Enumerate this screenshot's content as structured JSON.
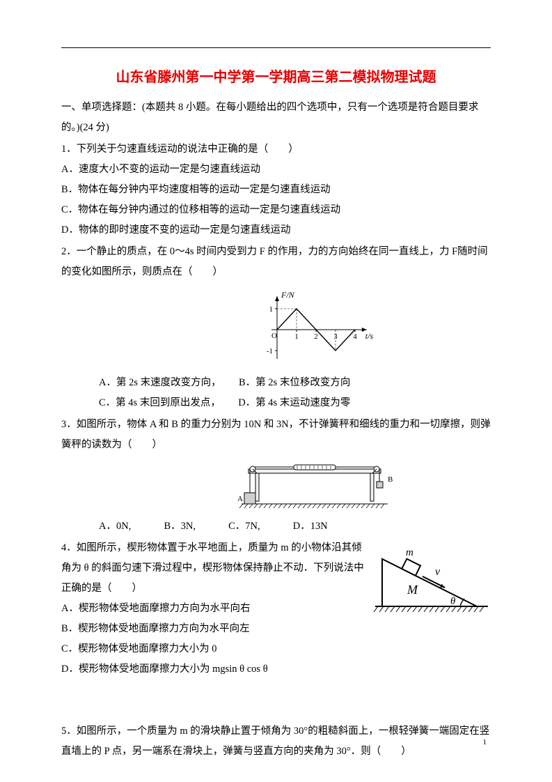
{
  "title": "山东省滕州第一中学第一学期高三第二模拟物理试题",
  "section1": {
    "heading": "一、单项选择题：(本题共 8 小题。在每小题给出的四个选项中，只有一个选项是符合题目要求的。)(24 分)"
  },
  "q1": {
    "stem": "1．下列关于匀速直线运动的说法中正确的是（　　）",
    "A": "A．速度大小不变的运动一定是匀速直线运动",
    "B": "B．物体在每分钟内平均速度相等的运动一定是匀速直线运动",
    "C": "C．物体在每分钟内通过的位移相等的运动一定是匀速直线运动",
    "D": "D．物体的即时速度不变的运动一定是匀速直线运动"
  },
  "q2": {
    "stem": "2．一个静止的质点，在 0～4s 时间内受到力 F 的作用，力的方向始终在同一直线上，力 F随时间的变化如图所示，则质点在（　　）",
    "graph": {
      "ylabel": "F/N",
      "xlabel": "t/s",
      "xticks": [
        1,
        2,
        3,
        4
      ],
      "yticks": [
        -1,
        1
      ],
      "points": [
        [
          0,
          0
        ],
        [
          1,
          1
        ],
        [
          2,
          0
        ],
        [
          3,
          -1
        ],
        [
          4,
          0
        ]
      ],
      "axis_color": "#000000",
      "line_color": "#000000",
      "dash_color": "#555555"
    },
    "optA": "A．第 2s 末速度改变方向，",
    "optB": "B．第 2s 末位移改变方向",
    "optC": "C．第 4s 末回到原出发点，",
    "optD": "D．第 4s 末运动速度为零"
  },
  "q3": {
    "stem": "3．如图所示，物体 A 和 B 的重力分别为 10N 和 3N，不计弹簧秤和细线的重力和一切摩擦，则弹簧秤的读数为（　　）",
    "optA": "A．0N,",
    "optB": "B．3N,",
    "optC": "C．7N,",
    "optD": "D．13N",
    "fig": {
      "labelA": "A",
      "labelB": "B",
      "stroke": "#000000",
      "fill_light": "#f2f2f2",
      "fill_dark": "#cfcfcf"
    }
  },
  "q4": {
    "stem": "4．如图所示，楔形物体置于水平地面上，质量为 m 的小物体沿其倾角为 θ 的斜面匀速下滑过程中，楔形物体保持静止不动．下列说法中正确的是（　　）",
    "A": "A．楔形物体受地面摩擦力方向为水平向右",
    "B": "B．楔形物体受地面摩擦力方向为水平向左",
    "C": "C．楔形物体受地面摩擦力大小为 0",
    "D": "D．楔形物体受地面摩擦力大小为 mgsin θ cos θ",
    "fig": {
      "labels": {
        "m": "m",
        "M": "M",
        "v": "v",
        "theta": "θ"
      },
      "stroke": "#000000"
    }
  },
  "q5": {
    "stem": "5．如图所示，一个质量为 m 的滑块静止置于倾角为 30°的粗糙斜面上，一根轻弹簧一端固定在竖直墙上的 P 点，另一端系在滑块上，弹簧与竖直方向的夹角为 30°．则（　　）"
  },
  "pageNumber": "1",
  "colors": {
    "title": "#e60000",
    "text": "#000000",
    "background": "#ffffff"
  }
}
